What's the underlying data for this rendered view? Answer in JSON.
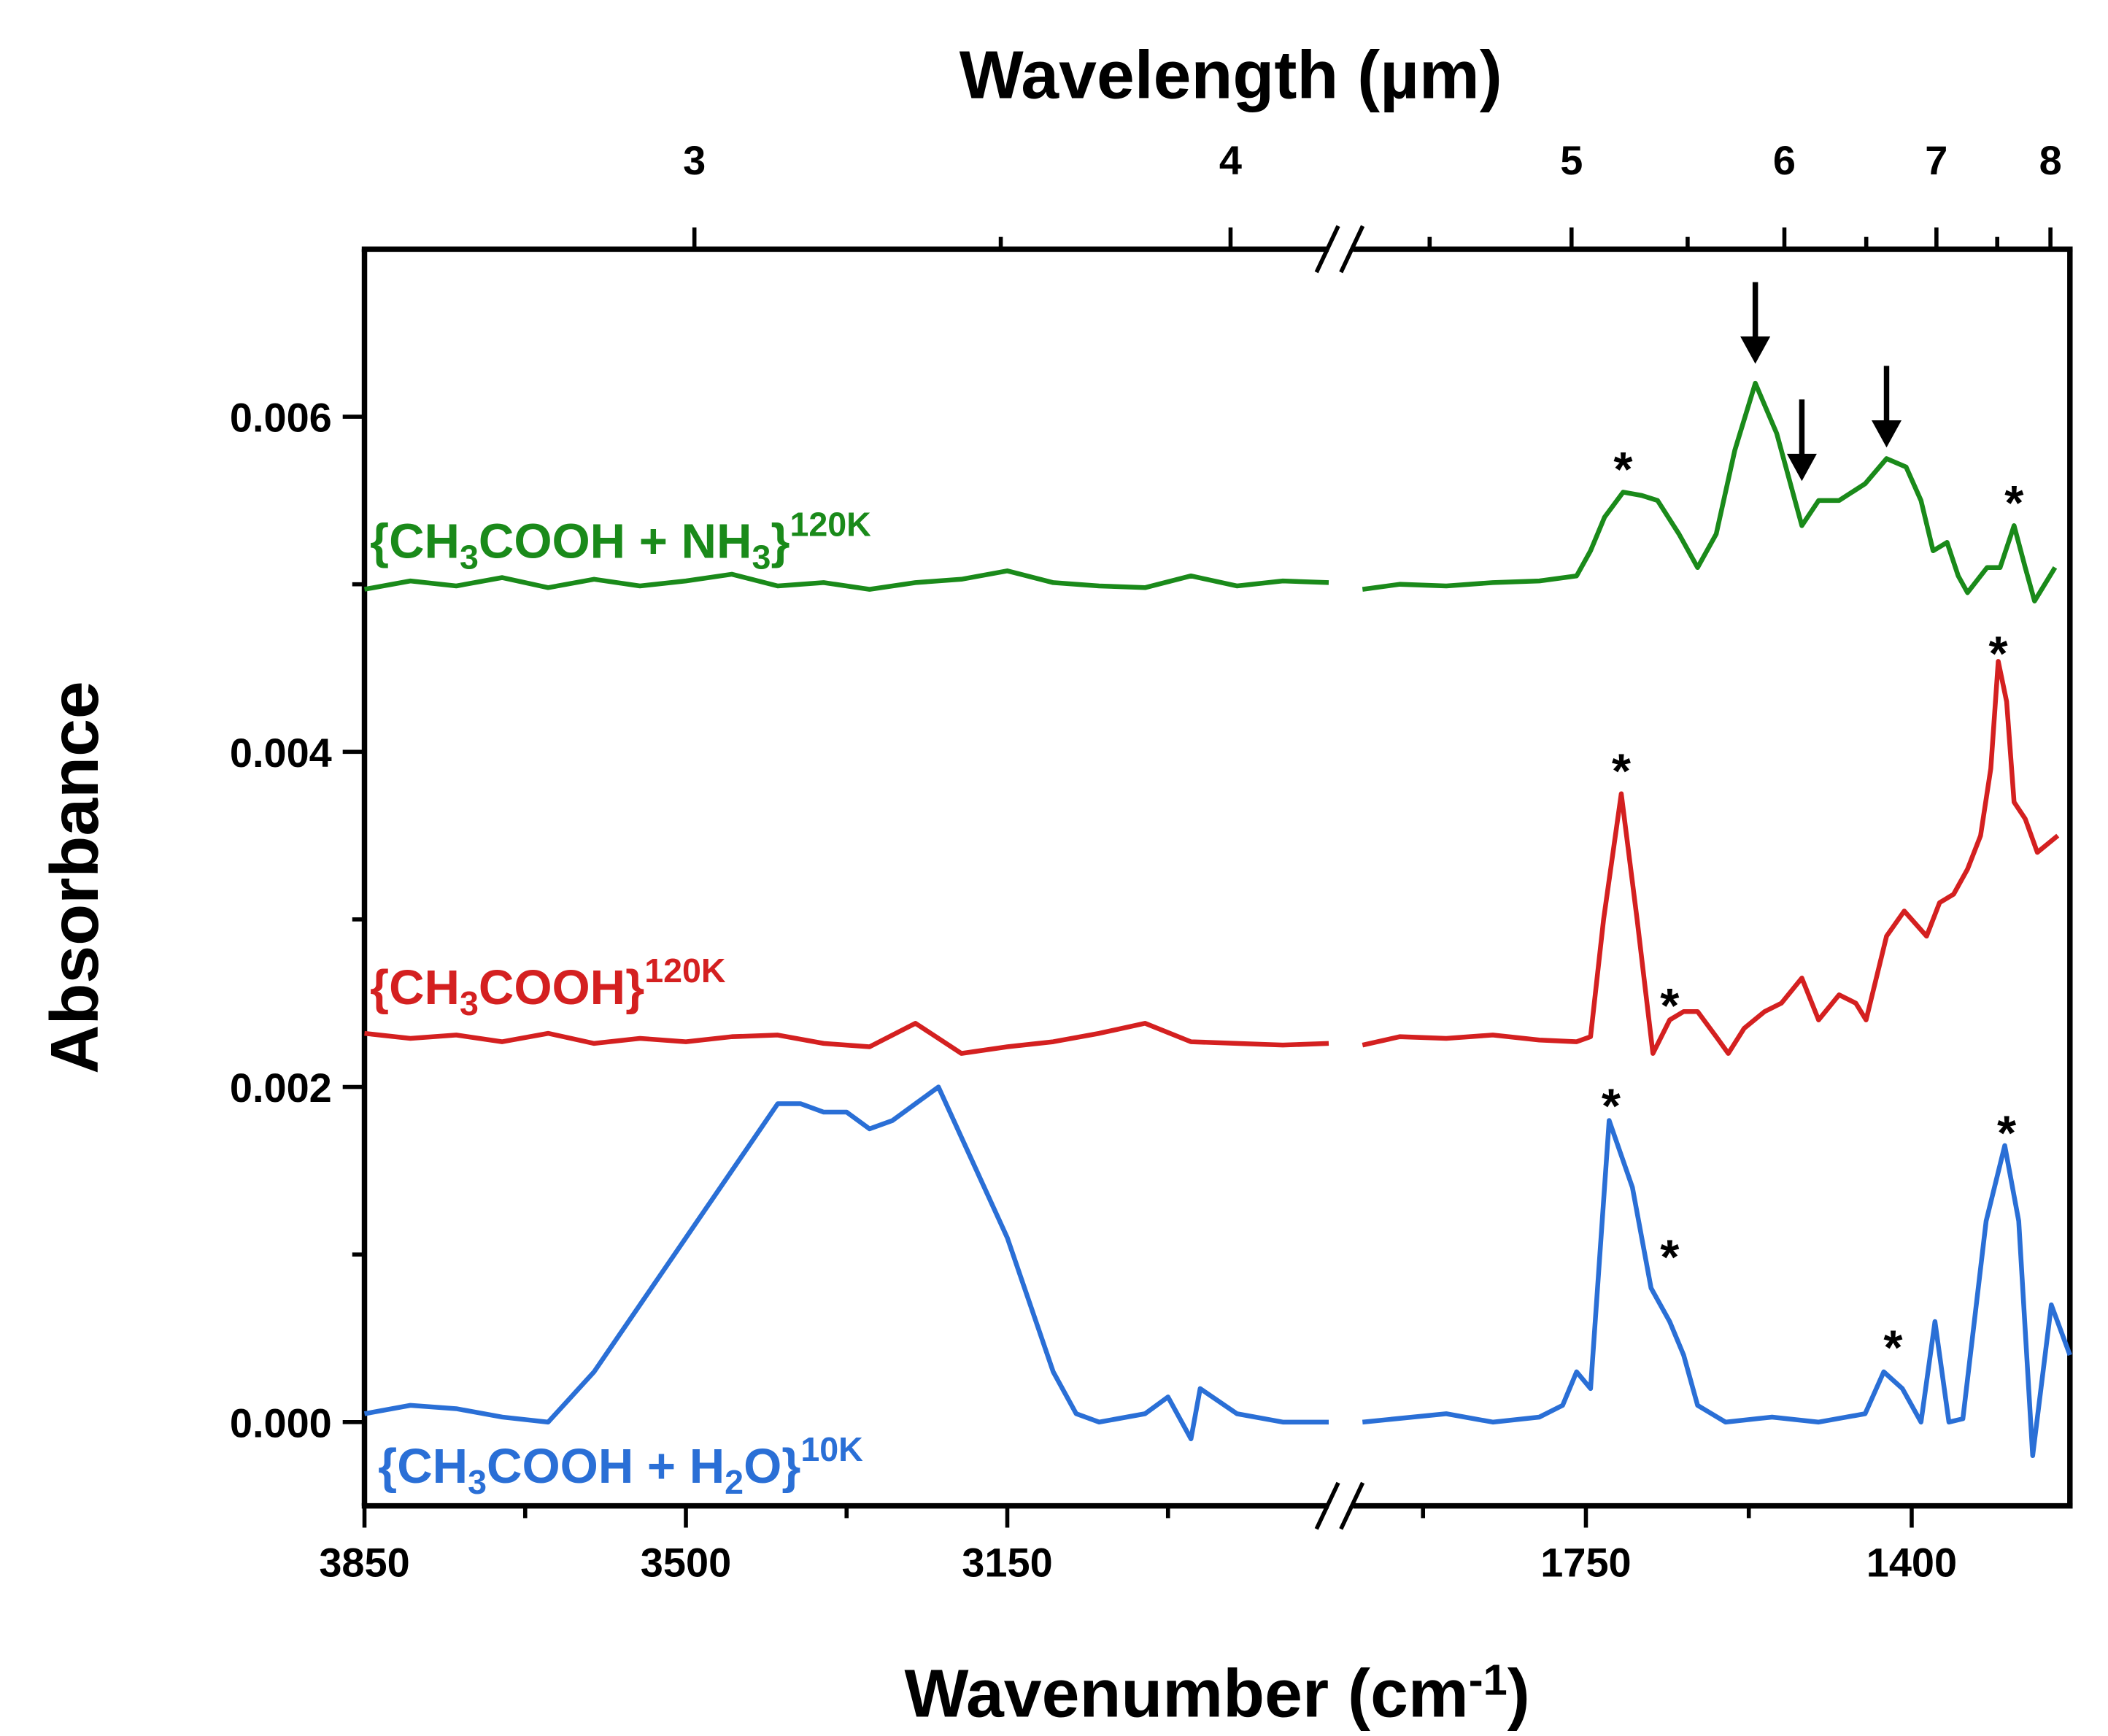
{
  "chart_data": {
    "type": "line",
    "title": "Wavelength (µm)",
    "x_label_parts": [
      "Wavenumber (cm",
      "-1",
      ")"
    ],
    "x_label_scripts": [
      "base",
      "sup",
      "base"
    ],
    "y_label": "Absorbance",
    "xlim": [
      [
        3850,
        2800
      ],
      [
        2000,
        1230
      ]
    ],
    "xticks": [
      3850,
      3500,
      3150,
      1750,
      1400
    ],
    "xminorticks": [
      3675,
      3325,
      2975,
      1925,
      1575
    ],
    "x2scale": "reciprocal",
    "x2lim": [
      [
        2.6,
        4.26
      ],
      [
        4.27,
        8.2
      ]
    ],
    "x2ticks": [
      3,
      4,
      5,
      6,
      7,
      8
    ],
    "x2minorticks": [
      3.5,
      4.5,
      5.5,
      6.5,
      7.5
    ],
    "ylim": [
      -0.0005,
      0.007
    ],
    "yticks": [
      {
        "value": 0,
        "label": "0.000"
      },
      {
        "value": 0.002,
        "label": "0.002"
      },
      {
        "value": 0.004,
        "label": "0.004"
      },
      {
        "value": 0.006,
        "label": "0.006"
      }
    ],
    "yminorticks": [
      0.001,
      0.003,
      0.005
    ],
    "series": [
      {
        "label_parts": [
          "{CH",
          "3",
          "COOH + NH",
          "3",
          "}",
          "120K"
        ],
        "label_scripts": [
          "base",
          "sub",
          "base",
          "sub",
          "base",
          "sup"
        ],
        "color": "#1a8a1a",
        "x": [
          3850,
          3800,
          3750,
          3700,
          3650,
          3600,
          3550,
          3500,
          3450,
          3400,
          3350,
          3300,
          3250,
          3200,
          3150,
          3100,
          3050,
          3000,
          2950,
          2900,
          2850,
          2800,
          null,
          1990,
          1950,
          1900,
          1850,
          1800,
          1760,
          1745,
          1730,
          1710,
          1690,
          1673,
          1650,
          1630,
          1610,
          1590,
          1568,
          1545,
          1518,
          1500,
          1478,
          1450,
          1427,
          1406,
          1390,
          1377,
          1362,
          1350,
          1340,
          1319,
          1305,
          1290,
          1278,
          1268,
          1246,
          1229
        ],
        "values": [
          0.00497,
          0.00502,
          0.00499,
          0.00504,
          0.00498,
          0.00503,
          0.00499,
          0.00502,
          0.00506,
          0.00499,
          0.00501,
          0.00497,
          0.00501,
          0.00503,
          0.00508,
          0.00501,
          0.00499,
          0.00498,
          0.00505,
          0.00499,
          0.00502,
          0.00501,
          null,
          0.00497,
          0.005,
          0.00499,
          0.00501,
          0.00502,
          0.00505,
          0.0052,
          0.0054,
          0.00555,
          0.00553,
          0.0055,
          0.0053,
          0.0051,
          0.0053,
          0.0058,
          0.0062,
          0.0059,
          0.00535,
          0.0055,
          0.0055,
          0.0056,
          0.00575,
          0.0057,
          0.0055,
          0.0052,
          0.00525,
          0.00505,
          0.00495,
          0.0051,
          0.0051,
          0.00535,
          0.0051,
          0.0049,
          0.0051,
          0.00535
        ]
      },
      {
        "label_parts": [
          "{CH",
          "3",
          "COOH}",
          "120K"
        ],
        "label_scripts": [
          "base",
          "sub",
          "base",
          "sup"
        ],
        "color": "#d42020",
        "x": [
          3850,
          3800,
          3750,
          3700,
          3650,
          3600,
          3550,
          3500,
          3450,
          3400,
          3350,
          3300,
          3250,
          3200,
          3150,
          3100,
          3050,
          3000,
          2950,
          2900,
          2850,
          2800,
          null,
          1990,
          1950,
          1900,
          1850,
          1800,
          1760,
          1745,
          1731,
          1712,
          1695,
          1678,
          1660,
          1645,
          1630,
          1610,
          1597,
          1580,
          1558,
          1540,
          1518,
          1500,
          1478,
          1460,
          1449,
          1427,
          1408,
          1384,
          1370,
          1355,
          1340,
          1326,
          1315,
          1307,
          1298,
          1290,
          1278,
          1265,
          1243,
          1229
        ],
        "values": [
          0.00232,
          0.00229,
          0.00231,
          0.00227,
          0.00232,
          0.00226,
          0.00229,
          0.00227,
          0.0023,
          0.00231,
          0.00226,
          0.00224,
          0.00238,
          0.0022,
          0.00224,
          0.00227,
          0.00232,
          0.00238,
          0.00227,
          0.00226,
          0.00225,
          0.00226,
          null,
          0.00225,
          0.0023,
          0.00229,
          0.00231,
          0.00228,
          0.00227,
          0.0023,
          0.003,
          0.00375,
          0.003,
          0.0022,
          0.0024,
          0.00245,
          0.00245,
          0.0023,
          0.0022,
          0.00235,
          0.00245,
          0.0025,
          0.00265,
          0.0024,
          0.00255,
          0.0025,
          0.0024,
          0.0029,
          0.00305,
          0.0029,
          0.0031,
          0.00315,
          0.0033,
          0.0035,
          0.0039,
          0.00454,
          0.0043,
          0.0037,
          0.0036,
          0.0034,
          0.0035,
          0.003
        ]
      },
      {
        "label_parts": [
          "{CH",
          "3",
          "COOH + H",
          "2",
          "O}",
          "10K"
        ],
        "label_scripts": [
          "base",
          "sub",
          "base",
          "sub",
          "base",
          "sup"
        ],
        "color": "#2a6fd6",
        "x": [
          3850,
          3800,
          3750,
          3700,
          3650,
          3625,
          3600,
          3575,
          3550,
          3525,
          3500,
          3475,
          3450,
          3425,
          3400,
          3375,
          3350,
          3325,
          3300,
          3275,
          3250,
          3225,
          3200,
          3175,
          3150,
          3125,
          3100,
          3075,
          3050,
          3000,
          2975,
          2950,
          2940,
          2900,
          2850,
          2800,
          null,
          1990,
          1900,
          1850,
          1800,
          1775,
          1760,
          1745,
          1725,
          1700,
          1680,
          1660,
          1645,
          1630,
          1600,
          1550,
          1500,
          1450,
          1430,
          1410,
          1390,
          1375,
          1360,
          1345,
          1320,
          1300,
          1285,
          1270,
          1250,
          1230
        ],
        "values": [
          5e-05,
          0.0001,
          8e-05,
          3e-05,
          0,
          0.00015,
          0.0003,
          0.0005,
          0.0007,
          0.0009,
          0.0011,
          0.0013,
          0.0015,
          0.0017,
          0.0019,
          0.0019,
          0.00185,
          0.00185,
          0.00175,
          0.0018,
          0.0019,
          0.002,
          0.0017,
          0.0014,
          0.0011,
          0.0007,
          0.0003,
          5e-05,
          0,
          5e-05,
          0.00015,
          -0.0001,
          0.0002,
          5e-05,
          0,
          0,
          null,
          0,
          5e-05,
          0,
          3e-05,
          0.0001,
          0.0003,
          0.0002,
          0.0018,
          0.0014,
          0.0008,
          0.0006,
          0.0004,
          0.0001,
          0,
          3e-05,
          0,
          5e-05,
          0.0003,
          0.0002,
          0,
          0.0006,
          0,
          2e-05,
          0.0012,
          0.00165,
          0.0012,
          -0.0002,
          0.0007,
          0.0004
        ]
      }
    ],
    "annotations": [
      {
        "text": "*",
        "x": 1710,
        "y": 0.0057
      },
      {
        "text": "*",
        "x": 1290,
        "y": 0.0055
      },
      {
        "text": "*",
        "x": 1712,
        "y": 0.0039
      },
      {
        "text": "*",
        "x": 1660,
        "y": 0.0025
      },
      {
        "text": "*",
        "x": 1307,
        "y": 0.0046
      },
      {
        "text": "*",
        "x": 1723,
        "y": 0.0019
      },
      {
        "text": "*",
        "x": 1660,
        "y": 0.001
      },
      {
        "text": "*",
        "x": 1420,
        "y": 0.00046
      },
      {
        "text": "*",
        "x": 1298,
        "y": 0.00174
      }
    ],
    "arrows": [
      {
        "x": 1568,
        "y": 0.0063
      },
      {
        "x": 1518,
        "y": 0.0056
      },
      {
        "x": 1427,
        "y": 0.0058
      }
    ]
  }
}
